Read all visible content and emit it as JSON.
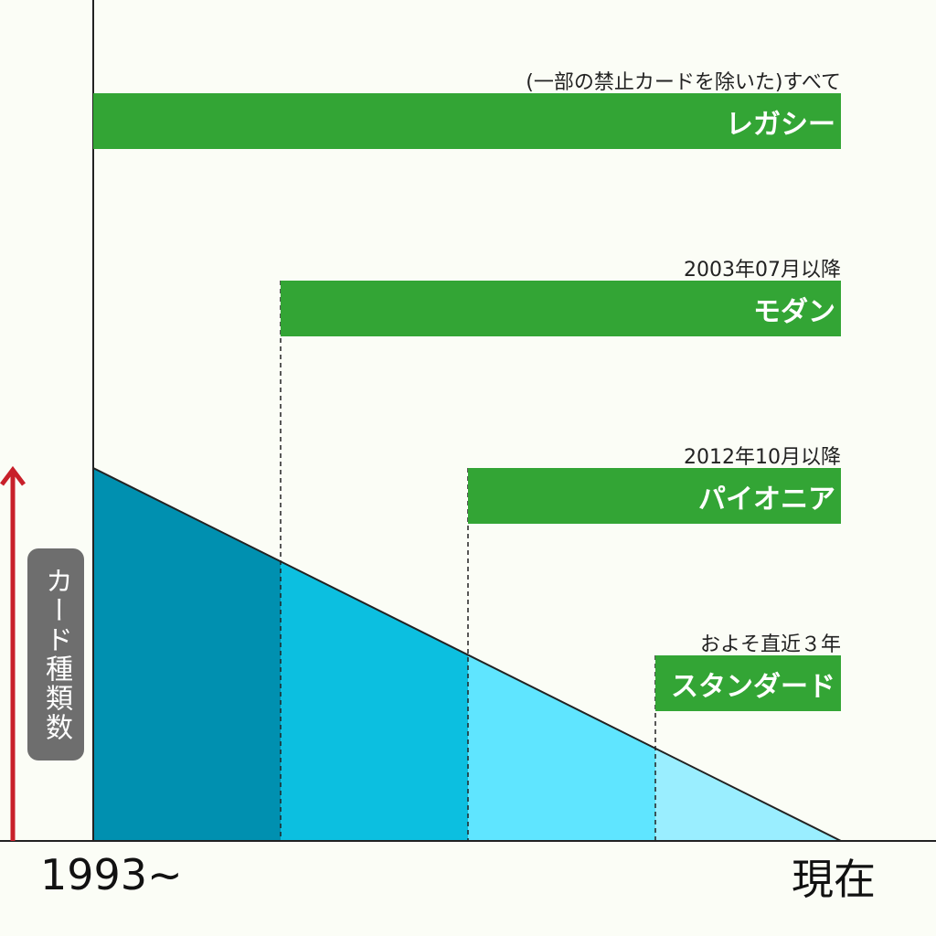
{
  "formats": [
    {
      "name": "レガシー",
      "note": "(一部の禁止カードを除いた)すべて"
    },
    {
      "name": "モダン",
      "note": "2003年07月以降"
    },
    {
      "name": "パイオニア",
      "note": "2012年10月以降"
    },
    {
      "name": "スタンダード",
      "note": "およそ直近３年"
    }
  ],
  "y_axis_label": "カード種類数",
  "x_axis": {
    "start": "1993~",
    "end": "現在"
  },
  "colors": {
    "background": "#fbfdf6",
    "bar": "#33a535",
    "arrow": "#c8202a",
    "segments": [
      "#0090b0",
      "#0cbfe0",
      "#5fe5ff",
      "#9aeeff"
    ]
  }
}
